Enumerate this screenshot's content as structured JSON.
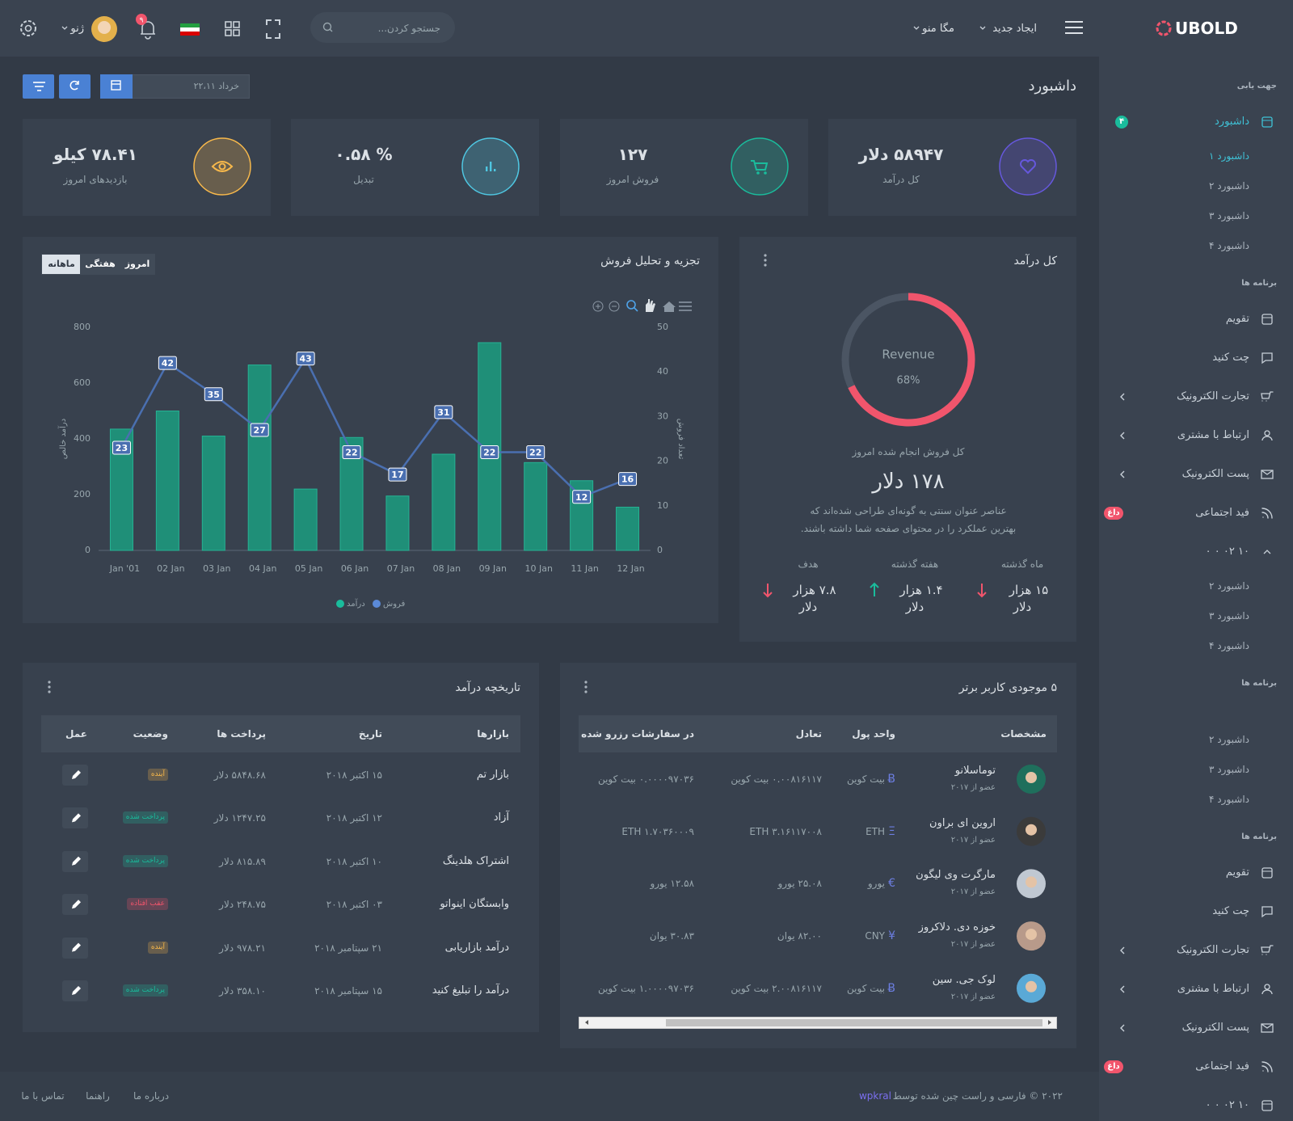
{
  "sidebar": {
    "brand": "UBOLD",
    "blocks": [
      {
        "heading": "جهت یابی",
        "items": [
          {
            "label": "داشبورد",
            "badge": "۴",
            "badge_color": "#1abc9c",
            "children": [
              "داشبورد ۱",
              "داشبورد ۲",
              "داشبورد ۳",
              "داشبورد ۴"
            ]
          }
        ]
      },
      {
        "heading": "برنامه ها",
        "items": [
          {
            "label": "تقویم"
          },
          {
            "label": "چت کنید"
          },
          {
            "label": "تجارت الکترونیک",
            "expandable": true
          },
          {
            "label": "ارتباط با مشتری",
            "expandable": true
          },
          {
            "label": "پست الکترونیک",
            "expandable": true
          },
          {
            "label": "فید اجتماعی",
            "badge": "داغ",
            "badge_color": "#f1556c"
          },
          {
            "label": "۱۰ ۰۲ ۰ ۰",
            "children": [
              "داشبورد ۲",
              "داشبورد ۳",
              "داشبورد ۴"
            ]
          }
        ]
      },
      {
        "heading": "برنامه ها",
        "items": [
          {
            "children": [
              "داشبورد ۲",
              "داشبورد ۳",
              "داشبورد ۴"
            ]
          }
        ]
      },
      {
        "heading": "برنامه ها",
        "items": [
          {
            "label": "تقویم"
          },
          {
            "label": "چت کنید"
          },
          {
            "label": "تجارت الکترونیک",
            "expandable": true
          },
          {
            "label": "ارتباط با مشتری",
            "expandable": true
          },
          {
            "label": "پست الکترونیک",
            "expandable": true
          },
          {
            "label": "فید اجتماعی",
            "badge": "داغ",
            "badge_color": "#f1556c"
          },
          {
            "label": "۱۰ ۰۲ ۰ ۰"
          }
        ]
      }
    ]
  },
  "topbar": {
    "create_new": "ایجاد جدید",
    "mega_menu": "مگا منو",
    "search_placeholder": "جستجو کردن...",
    "notification_count": "۹",
    "user": "ژنو"
  },
  "page": {
    "title": "داشبورد",
    "date": "خرداد ۲۲،۱۱"
  },
  "stats": [
    {
      "value": "۵۸۹۴۷ دلار",
      "label": "کل درآمد",
      "color": "#6658dd"
    },
    {
      "value": "۱۲۷",
      "label": "فروش امروز",
      "color": "#1abc9c"
    },
    {
      "value": "% ۰.۵۸",
      "label": "تبدیل",
      "color": "#4fc6e1"
    },
    {
      "value": "۷۸.۴۱ کیلو",
      "label": "بازدیدهای امروز",
      "color": "#f7b84b"
    }
  ],
  "sales_tabs": [
    "امروز",
    "هفتگی",
    "ماهانه"
  ],
  "chart_data": [
    {
      "type": "bar",
      "title": "تجزیه و تحلیل فروش",
      "ylabel": "درآمد خالص",
      "y2label": "تعداد فروش",
      "categories": [
        "Jan '01",
        "02 Jan",
        "03 Jan",
        "04 Jan",
        "05 Jan",
        "06 Jan",
        "07 Jan",
        "08 Jan",
        "09 Jan",
        "10 Jan",
        "11 Jan",
        "12 Jan"
      ],
      "series": [
        {
          "name": "درآمد",
          "type": "bar",
          "color": "#1f8f78",
          "values": [
            435,
            500,
            410,
            665,
            220,
            405,
            195,
            345,
            745,
            315,
            250,
            155
          ]
        },
        {
          "name": "فروش",
          "type": "line",
          "axis": "y2",
          "color": "#4a6fb0",
          "values": [
            23,
            42,
            35,
            27,
            43,
            22,
            17,
            31,
            22,
            22,
            12,
            16
          ]
        }
      ],
      "ylim": [
        0,
        800
      ],
      "yticks": [
        0,
        200,
        400,
        600,
        800
      ],
      "y2lim": [
        0,
        50
      ],
      "y2ticks": [
        0,
        10,
        20,
        30,
        40,
        50
      ],
      "grid": false
    },
    {
      "type": "donut",
      "title": "کل درآمد",
      "label": "Revenue",
      "value": 68,
      "value_label": "68%",
      "color": "#f1556c",
      "track_color": "#4b5563"
    }
  ],
  "revenue_card": {
    "subtitle": "کل فروش انجام شده امروز",
    "amount": "۱۷۸ دلار",
    "description": [
      "عناصر عنوان سنتی به گونه‌ای طراحی شده‌اند که",
      "بهترین عملکرد را در محتوای صفحه شما داشته باشند."
    ],
    "stats": [
      {
        "label": "ماه گذشته",
        "value": [
          "۱۵ هزار",
          "دلار"
        ],
        "trend": "down"
      },
      {
        "label": "هفته گذشته",
        "value": [
          "۱.۴ هزار",
          "دلار"
        ],
        "trend": "up"
      },
      {
        "label": "هدف",
        "value": [
          "۷.۸ هزار",
          "دلار"
        ],
        "trend": "down"
      }
    ]
  },
  "revenue_history": {
    "title": "تاریخچه درآمد",
    "columns": [
      "بازارها",
      "تاریخ",
      "پرداخت ها",
      "وضعیت",
      "عمل"
    ],
    "rows": [
      {
        "market": "بازار تم",
        "date": "۱۵ اکتبر ۲۰۱۸",
        "payment": "۵۸۴۸.۶۸ دلار",
        "status": "آینده",
        "status_color": "#f7b84b"
      },
      {
        "market": "آزاد",
        "date": "۱۲ اکتبر ۲۰۱۸",
        "payment": "۱۲۴۷.۲۵ دلار",
        "status": "پرداخت شده",
        "status_color": "#1abc9c"
      },
      {
        "market": "اشتراک هلدینگ",
        "date": "۱۰ اکتبر ۲۰۱۸",
        "payment": "۸۱۵.۸۹ دلار",
        "status": "پرداخت شده",
        "status_color": "#1abc9c"
      },
      {
        "market": "وابستگان اینواتو",
        "date": "۰۳ اکتبر ۲۰۱۸",
        "payment": "۲۴۸.۷۵ دلار",
        "status": "عقب افتاده",
        "status_color": "#f1556c"
      },
      {
        "market": "درآمد بازاریابی",
        "date": "۲۱ سپتامبر ۲۰۱۸",
        "payment": "۹۷۸.۲۱ دلار",
        "status": "آینده",
        "status_color": "#f7b84b"
      },
      {
        "market": "درآمد را تبلیغ کنید",
        "date": "۱۵ سپتامبر ۲۰۱۸",
        "payment": "۳۵۸.۱۰ دلار",
        "status": "پرداخت شده",
        "status_color": "#1abc9c"
      }
    ]
  },
  "top_users": {
    "title": "۵ موجودی کاربر برتر",
    "columns": [
      "مشخصات",
      "واحد پول",
      "تعادل",
      "در سفارشات رزرو شده است"
    ],
    "rows": [
      {
        "name": "توماسلانو",
        "since": "عضو از ۲۰۱۷",
        "symbol": "Ƀ",
        "currency": "بیت کوین",
        "balance": "۰.۰۰۸۱۶۱۱۷ بیت کوین",
        "reserved": "۰.۰۰۰۰۹۷۰۳۶ بیت کوین"
      },
      {
        "name": "اروین ای براون",
        "since": "عضو از ۲۰۱۷",
        "symbol": "Ξ",
        "currency": "ETH",
        "balance": "ETH ۳.۱۶۱۱۷۰۰۸",
        "reserved": "ETH ۱.۷۰۳۶۰۰۰۹"
      },
      {
        "name": "مارگرت وی لیگون",
        "since": "عضو از ۲۰۱۷",
        "symbol": "€",
        "currency": "یورو",
        "balance": "۲۵.۰۸ یورو",
        "reserved": "۱۲.۵۸ یورو"
      },
      {
        "name": "خوزه دی. دلاکروز",
        "since": "عضو از ۲۰۱۷",
        "symbol": "¥",
        "currency": "CNY",
        "balance": "۸۲.۰۰ یوان",
        "reserved": "۳۰.۸۳ یوان"
      },
      {
        "name": "لوک جی. سین",
        "since": "عضو از ۲۰۱۷",
        "symbol": "Ƀ",
        "currency": "بیت کوین",
        "balance": "۲.۰۰۸۱۶۱۱۷ بیت کوین",
        "reserved": "۱.۰۰۰۰۹۷۰۳۶ بیت کوین"
      }
    ]
  },
  "footer": {
    "text": "۲۰۲۲ © فارسی و راست چین شده توسط",
    "author": "wpkral",
    "links": [
      "درباره ما",
      "راهنما",
      "تماس با ما"
    ]
  }
}
